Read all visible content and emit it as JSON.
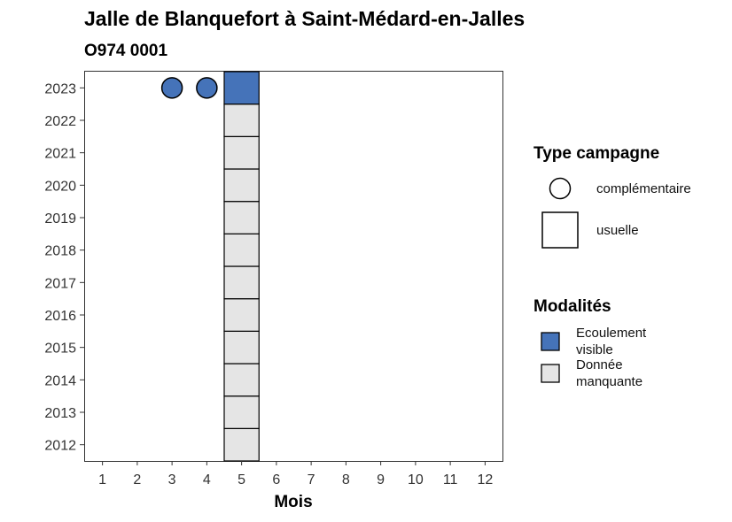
{
  "chart_data": {
    "type": "scatter",
    "title": "Jalle de Blanquefort à Saint-Médard-en-Jalles",
    "subtitle": "O974 0001",
    "xlabel": "Mois",
    "ylabel": "",
    "x_ticks": [
      1,
      2,
      3,
      4,
      5,
      6,
      7,
      8,
      9,
      10,
      11,
      12
    ],
    "y_ticks": [
      2012,
      2013,
      2014,
      2015,
      2016,
      2017,
      2018,
      2019,
      2020,
      2021,
      2022,
      2023
    ],
    "xlim": [
      0.5,
      12.5
    ],
    "ylim": [
      2011.5,
      2023.5
    ],
    "grid": false,
    "colors": {
      "Ecoulement visible": "#4573B9",
      "Donnée manquante": "#E5E5E5"
    },
    "observations": [
      {
        "month": 5,
        "year": 2012,
        "campaign": "usuelle",
        "modality": "Donnée manquante"
      },
      {
        "month": 5,
        "year": 2013,
        "campaign": "usuelle",
        "modality": "Donnée manquante"
      },
      {
        "month": 5,
        "year": 2014,
        "campaign": "usuelle",
        "modality": "Donnée manquante"
      },
      {
        "month": 5,
        "year": 2015,
        "campaign": "usuelle",
        "modality": "Donnée manquante"
      },
      {
        "month": 5,
        "year": 2016,
        "campaign": "usuelle",
        "modality": "Donnée manquante"
      },
      {
        "month": 5,
        "year": 2017,
        "campaign": "usuelle",
        "modality": "Donnée manquante"
      },
      {
        "month": 5,
        "year": 2018,
        "campaign": "usuelle",
        "modality": "Donnée manquante"
      },
      {
        "month": 5,
        "year": 2019,
        "campaign": "usuelle",
        "modality": "Donnée manquante"
      },
      {
        "month": 5,
        "year": 2020,
        "campaign": "usuelle",
        "modality": "Donnée manquante"
      },
      {
        "month": 5,
        "year": 2021,
        "campaign": "usuelle",
        "modality": "Donnée manquante"
      },
      {
        "month": 5,
        "year": 2022,
        "campaign": "usuelle",
        "modality": "Donnée manquante"
      },
      {
        "month": 5,
        "year": 2023,
        "campaign": "usuelle",
        "modality": "Ecoulement visible"
      },
      {
        "month": 3,
        "year": 2023,
        "campaign": "complémentaire",
        "modality": "Ecoulement visible"
      },
      {
        "month": 4,
        "year": 2023,
        "campaign": "complémentaire",
        "modality": "Ecoulement visible"
      }
    ],
    "legend": {
      "position": "right",
      "campaign_title": "Type campagne",
      "campaign_items": [
        {
          "label": "complémentaire",
          "shape": "circle"
        },
        {
          "label": "usuelle",
          "shape": "square"
        }
      ],
      "modality_title": "Modalités",
      "modality_items": [
        {
          "lines": [
            "Ecoulement",
            "visible"
          ],
          "color": "#4573B9"
        },
        {
          "lines": [
            "Donnée",
            "manquante"
          ],
          "color": "#E5E5E5"
        }
      ]
    }
  }
}
